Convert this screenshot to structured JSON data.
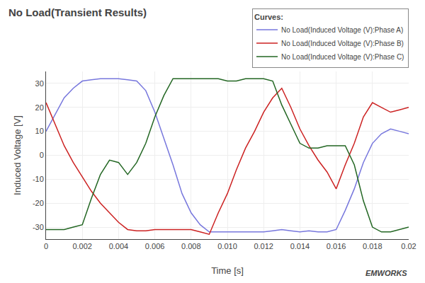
{
  "chart_data": {
    "type": "line",
    "title": "No Load(Transient Results)",
    "x_label": "Time [s]",
    "y_label": "Induced Voltage [V]",
    "legend_title": "Curves:",
    "legend": "upper right",
    "grid": true,
    "annotations": [
      "EMWORKS"
    ],
    "xlim": [
      0,
      0.02
    ],
    "ylim": [
      -35,
      35
    ],
    "xticks": [
      0,
      0.002,
      0.004,
      0.006,
      0.008,
      {
        "value": 0.01,
        "label": "0.010"
      },
      0.012,
      0.014,
      0.016,
      0.018,
      0.02
    ],
    "yticks": [
      -30,
      -20,
      -10,
      0,
      10,
      20,
      30
    ],
    "series": [
      {
        "name": "No Load(Induced Voltage (V):Phase A)",
        "color": "#7777dd",
        "x": [
          0.0,
          0.0005,
          0.001,
          0.0015,
          0.002,
          0.0025,
          0.003,
          0.0033,
          0.004,
          0.0045,
          0.005,
          0.0055,
          0.006,
          0.0065,
          0.007,
          0.0075,
          0.008,
          0.0085,
          0.009,
          0.0095,
          0.01,
          0.0105,
          0.011,
          0.0115,
          0.012,
          0.0125,
          0.013,
          0.0135,
          0.014,
          0.0145,
          0.015,
          0.0155,
          0.016,
          0.0165,
          0.017,
          0.0175,
          0.018,
          0.0185,
          0.019,
          0.0195,
          0.02
        ],
        "values": [
          10,
          17,
          24,
          28,
          31,
          31.5,
          32,
          32,
          32,
          31.5,
          31,
          27,
          18,
          7,
          -4,
          -16,
          -24,
          -29,
          -32,
          -32,
          -32,
          -32,
          -32,
          -32,
          -32,
          -31.5,
          -31,
          -31.5,
          -32,
          -31.5,
          -32,
          -32,
          -31,
          -23,
          -14,
          -3,
          5,
          9,
          11,
          10,
          9
        ]
      },
      {
        "name": "No Load(Induced Voltage (V):Phase B)",
        "color": "#cc2222",
        "x": [
          0.0,
          0.0005,
          0.001,
          0.0015,
          0.002,
          0.0025,
          0.003,
          0.0035,
          0.004,
          0.0045,
          0.005,
          0.0055,
          0.006,
          0.0065,
          0.007,
          0.0075,
          0.008,
          0.0085,
          0.009,
          0.0095,
          0.01,
          0.0105,
          0.011,
          0.0115,
          0.012,
          0.0125,
          0.013,
          0.0135,
          0.014,
          0.0145,
          0.015,
          0.0155,
          0.016,
          0.0165,
          0.017,
          0.0175,
          0.018,
          0.0185,
          0.019,
          0.0195,
          0.02
        ],
        "values": [
          22,
          13,
          4,
          -3,
          -9,
          -15,
          -20,
          -24,
          -28,
          -31,
          -31.5,
          -31.5,
          -31,
          -31,
          -31,
          -31,
          -31,
          -32,
          -33,
          -24,
          -16,
          -6,
          3,
          10,
          18,
          24,
          28,
          20,
          11,
          4,
          -2,
          -7,
          -14,
          -4,
          5,
          16,
          22,
          20,
          18,
          19,
          20
        ]
      },
      {
        "name": "No Load(Induced Voltage (V):Phase C)",
        "color": "#226622",
        "x": [
          0.0,
          0.0005,
          0.001,
          0.0015,
          0.002,
          0.0025,
          0.003,
          0.0035,
          0.004,
          0.0045,
          0.005,
          0.0055,
          0.006,
          0.0065,
          0.007,
          0.0075,
          0.008,
          0.0085,
          0.009,
          0.0095,
          0.01,
          0.0105,
          0.011,
          0.0115,
          0.012,
          0.0125,
          0.013,
          0.0135,
          0.014,
          0.0145,
          0.015,
          0.0155,
          0.016,
          0.0165,
          0.017,
          0.0175,
          0.018,
          0.0185,
          0.019,
          0.0195,
          0.02
        ],
        "values": [
          -31,
          -31,
          -31,
          -30,
          -29,
          -18,
          -8,
          -2,
          -3,
          -8,
          -3,
          5,
          16,
          25,
          32,
          32,
          32,
          32,
          32,
          32,
          31,
          31,
          32,
          32,
          32,
          31,
          21,
          13,
          5,
          3,
          3,
          4,
          4,
          4,
          -4,
          -19,
          -30,
          -32,
          -32,
          -31,
          -30
        ]
      }
    ]
  }
}
